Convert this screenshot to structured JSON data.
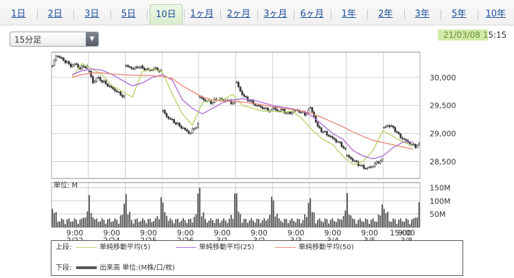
{
  "tabs": [
    {
      "label": "1日",
      "active": false
    },
    {
      "label": "2日",
      "active": false
    },
    {
      "label": "3日",
      "active": false
    },
    {
      "label": "5日",
      "active": false
    },
    {
      "label": "10日",
      "active": true
    },
    {
      "label": "1ヶ月",
      "active": false
    },
    {
      "label": "2ヶ月",
      "active": false
    },
    {
      "label": "3ヶ月",
      "active": false
    },
    {
      "label": "6ヶ月",
      "active": false
    },
    {
      "label": "1年",
      "active": false
    },
    {
      "label": "2年",
      "active": false
    },
    {
      "label": "3年",
      "active": false
    },
    {
      "label": "5年",
      "active": false
    },
    {
      "label": "10年",
      "active": false
    }
  ],
  "interval_select": {
    "value": "15分足"
  },
  "timestamp": {
    "date": "21/03/08 1",
    "rest": "5:15"
  },
  "volume_panel": {
    "unit_label": "単位: M"
  },
  "legend": {
    "upper_label": "上段:",
    "lower_label": "下段:",
    "ma": [
      {
        "label": "単純移動平均(5)",
        "color": "#b8d36a"
      },
      {
        "label": "単純移動平均(25)",
        "color": "#b070d8"
      },
      {
        "label": "単純移動平均(50)",
        "color": "#e88a78"
      }
    ],
    "volume_label": "出来高 単位:(M株/口/枚)"
  },
  "colors": {
    "up": "#ffffff",
    "down": "#333333",
    "grid": "#bbbbbb",
    "volume": "#555555"
  },
  "chart_data": {
    "type": "candlestick",
    "interval": "15m",
    "days": [
      {
        "time": "9:00",
        "date": "2/22"
      },
      {
        "time": "9:00",
        "date": "2/24"
      },
      {
        "time": "9:00",
        "date": "2/25"
      },
      {
        "time": "9:00",
        "date": "2/26"
      },
      {
        "time": "9:00",
        "date": "3/1"
      },
      {
        "time": "9:00",
        "date": "3/2"
      },
      {
        "time": "9:00",
        "date": "3/3"
      },
      {
        "time": "9:00",
        "date": "3/4"
      },
      {
        "time": "9:00",
        "date": "3/5"
      },
      {
        "time": "9:00",
        "date": "3/8"
      }
    ],
    "end_label": "15:00",
    "price_ticks": [
      28500,
      29000,
      29500,
      30000
    ],
    "price_tick_labels": [
      "28,500",
      "29,000",
      "29,500",
      "30,000"
    ],
    "price_range": [
      28200,
      30450
    ],
    "volume_ticks": [
      50,
      100,
      150
    ],
    "volume_tick_labels": [
      "50M",
      "100M",
      "150M"
    ],
    "volume_range": [
      0,
      170
    ],
    "day_path_closes": [
      [
        30200,
        30400,
        30350,
        30300,
        30250,
        30200,
        30250,
        30150,
        30200,
        30180
      ],
      [
        30100,
        29900,
        30000,
        29950,
        29900,
        29850,
        29800,
        29750,
        29700,
        29650
      ],
      [
        30200,
        30180,
        30150,
        30200,
        30170,
        30150,
        30120,
        30160,
        30140,
        30100
      ],
      [
        29400,
        29300,
        29250,
        29200,
        29150,
        29100,
        29050,
        29000,
        29100,
        29150
      ],
      [
        29650,
        29600,
        29580,
        29550,
        29600,
        29620,
        29580,
        29600,
        29550,
        29570
      ],
      [
        29900,
        29750,
        29650,
        29600,
        29550,
        29500,
        29480,
        29450,
        29420,
        29400
      ],
      [
        29450,
        29400,
        29430,
        29380,
        29350,
        29400,
        29420,
        29380,
        29350,
        29400
      ],
      [
        29450,
        29300,
        29100,
        29050,
        29000,
        28950,
        28900,
        28850,
        28800,
        28700
      ],
      [
        28600,
        28550,
        28500,
        28450,
        28400,
        28380,
        28400,
        28450,
        28500,
        28520
      ],
      [
        29100,
        29150,
        29120,
        29050,
        28950,
        28900,
        28850,
        28800,
        28780,
        28800
      ]
    ],
    "ma_series": [
      {
        "name": "単純移動平均(5)",
        "values": [
          30000,
          30250,
          30150,
          30050,
          29850,
          29750,
          29650,
          30100,
          30150,
          30100,
          29700,
          29350,
          29150,
          29550,
          29600,
          29600,
          29700,
          29500,
          29450,
          29400,
          29400,
          29380,
          29400,
          29250,
          29050,
          28900,
          28800,
          28600,
          28450,
          28500,
          28700,
          29050,
          28950,
          28850,
          28780
        ]
      },
      {
        "name": "単純移動平均(25)",
        "values": [
          30050,
          30120,
          30150,
          30130,
          30050,
          29950,
          29850,
          29900,
          30000,
          30050,
          29950,
          29600,
          29450,
          29350,
          29450,
          29550,
          29600,
          29620,
          29600,
          29550,
          29500,
          29470,
          29440,
          29400,
          29300,
          29150,
          29000,
          28900,
          28700,
          28600,
          28550,
          28600,
          28750,
          28850,
          28850
        ]
      },
      {
        "name": "単純移動平均(50)",
        "values": [
          30000,
          30050,
          30080,
          30080,
          30060,
          30050,
          30040,
          30040,
          30030,
          30020,
          29980,
          29850,
          29750,
          29650,
          29600,
          29580,
          29570,
          29560,
          29540,
          29510,
          29480,
          29450,
          29430,
          29400,
          29350,
          29280,
          29200,
          29120,
          29030,
          28950,
          28880,
          28840,
          28800,
          28760,
          28720
        ]
      }
    ],
    "grid": true
  }
}
